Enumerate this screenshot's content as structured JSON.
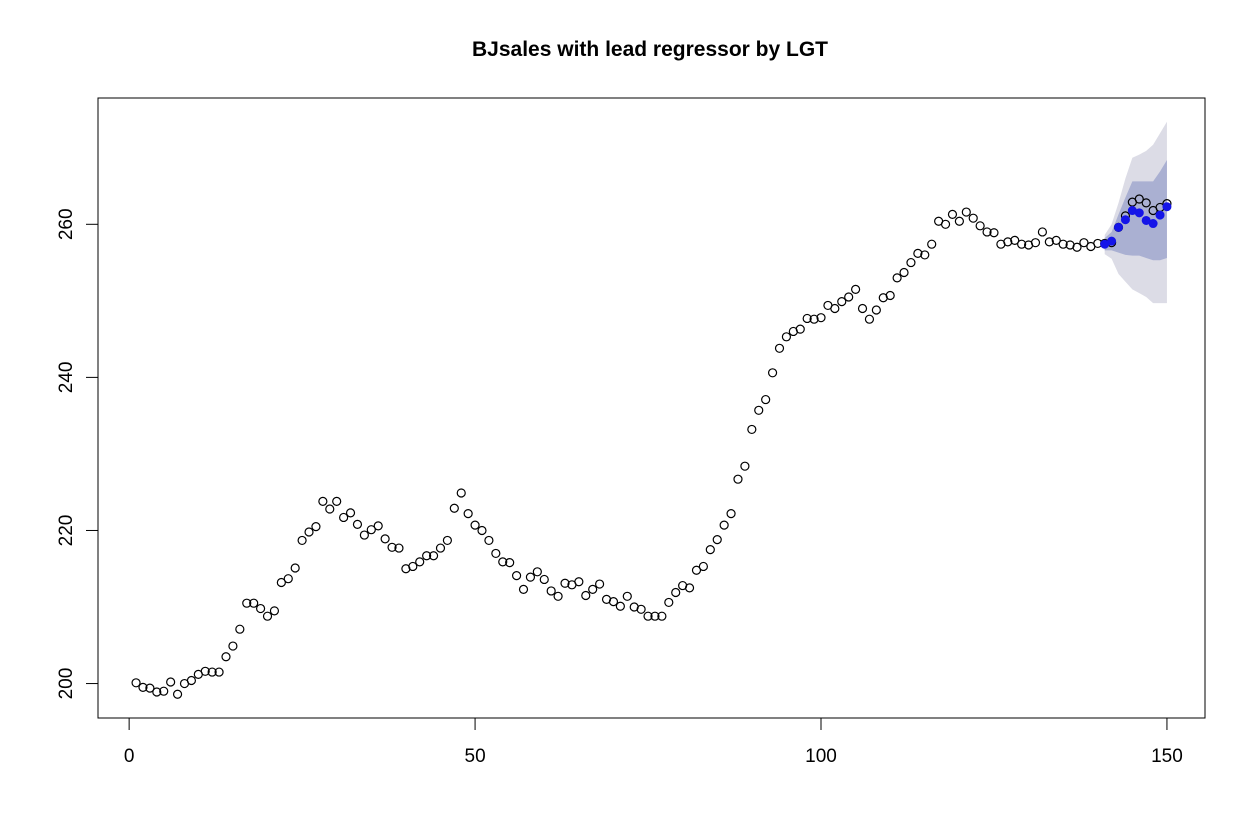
{
  "chart_data": {
    "type": "scatter",
    "title": "BJsales with lead regressor by LGT",
    "xlabel": "",
    "ylabel": "",
    "xlim": [
      -4.5,
      155.5
    ],
    "ylim": [
      195.5,
      276.5
    ],
    "x_ticks": [
      "0",
      "50",
      "100",
      "150"
    ],
    "y_ticks": [
      "200",
      "220",
      "240",
      "260"
    ],
    "grid": false,
    "legend": "none",
    "series": [
      {
        "style": "open-circle",
        "color": "#000000",
        "x_start": 1,
        "values": [
          200.1,
          199.5,
          199.4,
          198.9,
          199.0,
          200.2,
          198.6,
          200.0,
          200.4,
          201.2,
          201.6,
          201.5,
          201.5,
          203.5,
          204.9,
          207.1,
          210.5,
          210.5,
          209.8,
          208.8,
          209.5,
          213.2,
          213.7,
          215.1,
          218.7,
          219.8,
          220.5,
          223.8,
          222.8,
          223.8,
          221.7,
          222.3,
          220.8,
          219.4,
          220.1,
          220.6,
          218.9,
          217.8,
          217.7,
          215.0,
          215.3,
          215.9,
          216.7,
          216.7,
          217.7,
          218.7,
          222.9,
          224.9,
          222.2,
          220.7,
          220.0,
          218.7,
          217.0,
          215.9,
          215.8,
          214.1,
          212.3,
          213.9,
          214.6,
          213.6,
          212.1,
          211.4,
          213.1,
          212.9,
          213.3,
          211.5,
          212.3,
          213.0,
          211.0,
          210.7,
          210.1,
          211.4,
          210.0,
          209.7,
          208.8,
          208.8,
          208.8,
          210.6,
          211.9,
          212.8,
          212.5,
          214.8,
          215.3,
          217.5,
          218.8,
          220.7,
          222.2,
          226.7,
          228.4,
          233.2,
          235.7,
          237.1,
          240.6,
          243.8,
          245.3,
          246.0,
          246.3,
          247.7,
          247.6,
          247.8,
          249.4,
          249.0,
          249.9,
          250.5,
          251.5,
          249.0,
          247.6,
          248.8,
          250.4,
          250.7,
          253.0,
          253.7,
          255.0,
          256.2,
          256.0,
          257.4,
          260.4,
          260.0,
          261.3,
          260.4,
          261.6,
          260.8,
          259.8,
          259.0,
          258.9,
          257.4,
          257.7,
          257.9,
          257.4,
          257.3,
          257.6,
          259.0,
          257.7,
          257.9,
          257.4,
          257.3,
          257.0,
          257.6,
          257.1,
          257.5,
          257.5,
          257.6,
          259.6,
          261.1,
          262.9,
          263.3,
          262.8,
          261.8,
          262.2,
          262.7
        ]
      },
      {
        "style": "filled-circle",
        "color": "#1515e8",
        "x_start": 141,
        "values": [
          257.4,
          257.8,
          259.6,
          260.6,
          261.8,
          261.5,
          260.5,
          260.1,
          261.2,
          262.3
        ]
      }
    ],
    "intervals": [
      {
        "name": "outer",
        "color": "#dcdce6",
        "x_start": 141,
        "lower": [
          256.1,
          255.5,
          253.5,
          252.5,
          251.5,
          251.0,
          250.5,
          249.7,
          249.7,
          249.7
        ],
        "upper": [
          258.6,
          260.0,
          262.8,
          266.0,
          268.7,
          269.1,
          269.6,
          270.4,
          271.9,
          273.4
        ]
      },
      {
        "name": "inner",
        "color": "#aab0d2",
        "x_start": 141,
        "lower": [
          256.6,
          256.6,
          256.3,
          256.0,
          255.9,
          255.9,
          255.6,
          255.3,
          255.3,
          255.6
        ],
        "upper": [
          258.2,
          259.0,
          261.3,
          263.5,
          265.6,
          265.6,
          265.6,
          265.6,
          266.9,
          268.4
        ]
      }
    ]
  }
}
